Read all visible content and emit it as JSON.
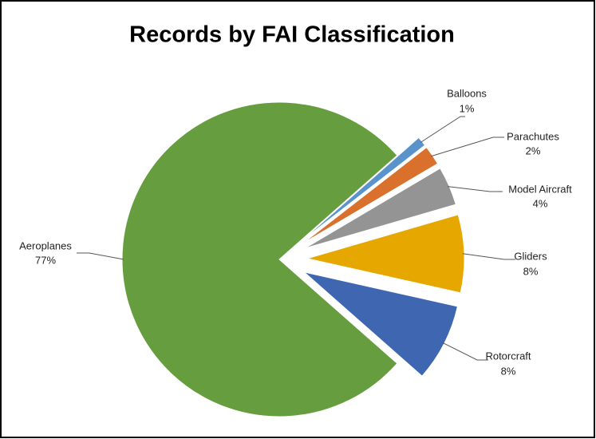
{
  "chart_data": {
    "type": "pie",
    "title": "Records by FAI Classification",
    "categories": [
      "Balloons",
      "Parachutes",
      "Model Aircraft",
      "Gliders",
      "Rotorcraft",
      "Aeroplanes"
    ],
    "values": [
      1,
      2,
      4,
      8,
      8,
      77
    ],
    "value_labels": [
      "1%",
      "2%",
      "4%",
      "8%",
      "8%",
      "77%"
    ],
    "colors": [
      "#5a93cb",
      "#d9702c",
      "#949494",
      "#e6a800",
      "#3f66b0",
      "#659d3f"
    ]
  }
}
